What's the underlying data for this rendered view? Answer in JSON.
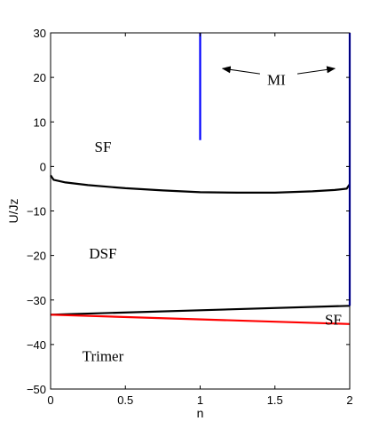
{
  "chart_data": {
    "type": "line",
    "xlabel": "n",
    "ylabel": "U/Jz",
    "xlim": [
      0,
      2
    ],
    "ylim": [
      -50,
      30
    ],
    "x_ticks": [
      0,
      0.5,
      1,
      1.5,
      2
    ],
    "x_tick_labels": [
      "0",
      "0.5",
      "1",
      "1.5",
      "2"
    ],
    "y_ticks": [
      -50,
      -40,
      -30,
      -20,
      -10,
      0,
      10,
      20,
      30
    ],
    "y_tick_labels": [
      "−50",
      "−40",
      "−30",
      "−20",
      "−10",
      "0",
      "10",
      "20",
      "30"
    ],
    "grid": false,
    "series": [
      {
        "color": "#000000",
        "x": [
          0,
          0.02,
          0.1,
          0.25,
          0.5,
          0.75,
          1.0,
          1.25,
          1.5,
          1.75,
          1.9,
          1.98,
          2.0
        ],
        "y": [
          -2.0,
          -3.0,
          -3.6,
          -4.2,
          -4.9,
          -5.4,
          -5.8,
          -5.9,
          -5.9,
          -5.6,
          -5.3,
          -5.0,
          -4.0
        ]
      },
      {
        "color": "#000000",
        "x": [
          0,
          2
        ],
        "y": [
          -33.3,
          -31.3
        ]
      },
      {
        "color": "#ff0000",
        "x": [
          0,
          2
        ],
        "y": [
          -33.3,
          -35.4
        ]
      },
      {
        "color": "#0000ff",
        "x": [
          1,
          1
        ],
        "y": [
          5.9,
          30
        ]
      },
      {
        "color": "#0000ff",
        "x": [
          2,
          2
        ],
        "y": [
          -31.3,
          30
        ]
      }
    ],
    "annotations": [
      {
        "text": "SF",
        "x": 0.35,
        "y": 4.5
      },
      {
        "text": "MI",
        "x": 1.51,
        "y": 19.5
      },
      {
        "text": "DSF",
        "x": 0.35,
        "y": -19.5
      },
      {
        "text": "SF",
        "x": 1.89,
        "y": -34.3
      },
      {
        "text": "Trimer",
        "x": 0.35,
        "y": -42.5
      }
    ],
    "arrows": [
      {
        "from": [
          1.4,
          20.8
        ],
        "to": [
          1.15,
          22.0
        ]
      },
      {
        "from": [
          1.65,
          20.8
        ],
        "to": [
          1.9,
          22.0
        ]
      }
    ]
  }
}
